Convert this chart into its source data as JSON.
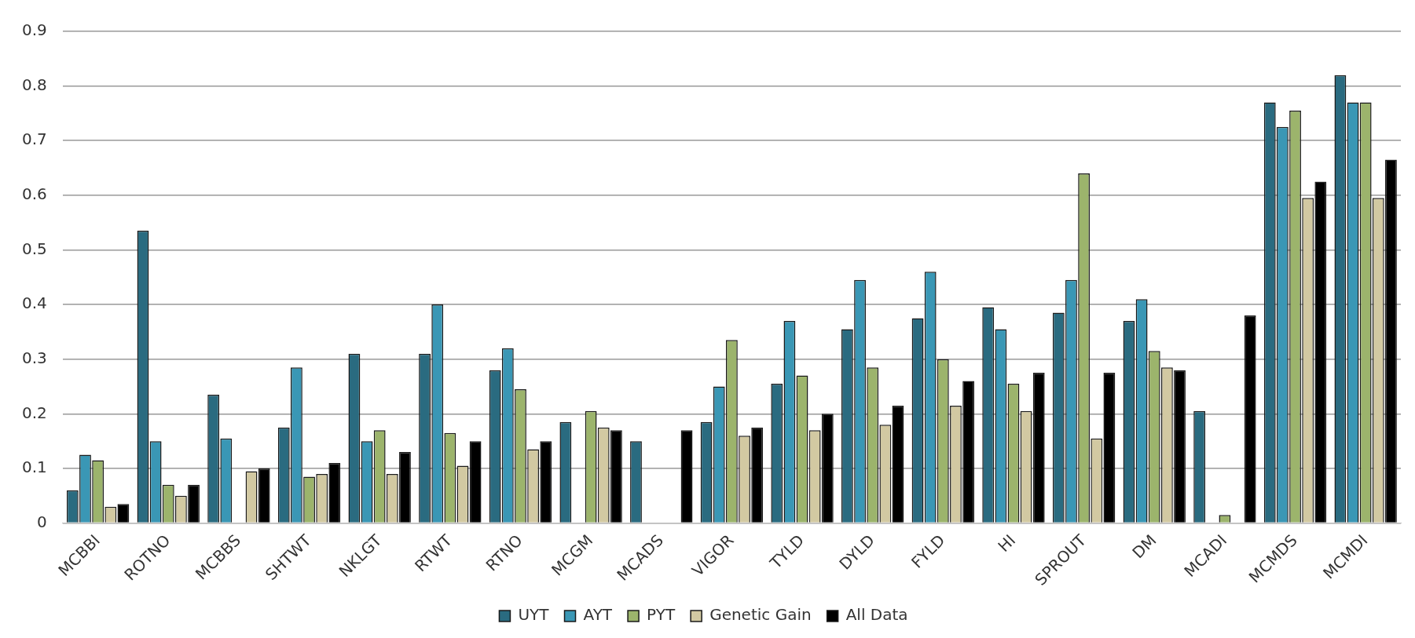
{
  "chart_data": {
    "type": "bar",
    "categories": [
      "MCBBI",
      "ROTNO",
      "MCBBS",
      "SHTWT",
      "NKLGT",
      "RTWT",
      "RTNO",
      "MCGM",
      "MCADS",
      "VIGOR",
      "TYLD",
      "DYLD",
      "FYLD",
      "HI",
      "SPROUT",
      "DM",
      "MCADI",
      "MCMDS",
      "MCMDI"
    ],
    "series": [
      {
        "name": "UYT",
        "color": "#2a6b80",
        "values": [
          0.06,
          0.535,
          0.235,
          0.175,
          0.31,
          0.31,
          0.28,
          0.185,
          0.15,
          0.185,
          0.255,
          0.355,
          0.375,
          0.395,
          0.385,
          0.37,
          0.205,
          0.77,
          0.82
        ]
      },
      {
        "name": "AYT",
        "color": "#3a97b5",
        "values": [
          0.125,
          0.15,
          0.155,
          0.285,
          0.15,
          0.4,
          0.32,
          null,
          null,
          0.25,
          0.37,
          0.445,
          0.46,
          0.355,
          0.445,
          0.41,
          null,
          0.725,
          0.77
        ]
      },
      {
        "name": "PYT",
        "color": "#9cb46c",
        "values": [
          0.115,
          0.07,
          null,
          0.085,
          0.17,
          0.165,
          0.245,
          0.205,
          null,
          0.335,
          0.27,
          0.285,
          0.3,
          0.255,
          0.64,
          0.315,
          0.015,
          0.755,
          0.77
        ]
      },
      {
        "name": "Genetic Gain",
        "color": "#d2c9a2",
        "values": [
          0.03,
          0.05,
          0.095,
          0.09,
          0.09,
          0.105,
          0.135,
          0.175,
          null,
          0.16,
          0.17,
          0.18,
          0.215,
          0.205,
          0.155,
          0.285,
          null,
          0.595,
          0.595
        ]
      },
      {
        "name": "All Data",
        "color": "#000000",
        "values": [
          0.035,
          0.07,
          0.1,
          0.11,
          0.13,
          0.15,
          0.15,
          0.17,
          0.17,
          0.175,
          0.2,
          0.215,
          0.26,
          0.275,
          0.275,
          0.28,
          0.38,
          0.625,
          0.665
        ]
      }
    ],
    "ylim": [
      0,
      0.9
    ],
    "yticks": [
      0,
      0.1,
      0.2,
      0.3,
      0.4,
      0.5,
      0.6,
      0.7,
      0.8,
      0.9
    ],
    "grid": "y",
    "legend": "bottom"
  }
}
